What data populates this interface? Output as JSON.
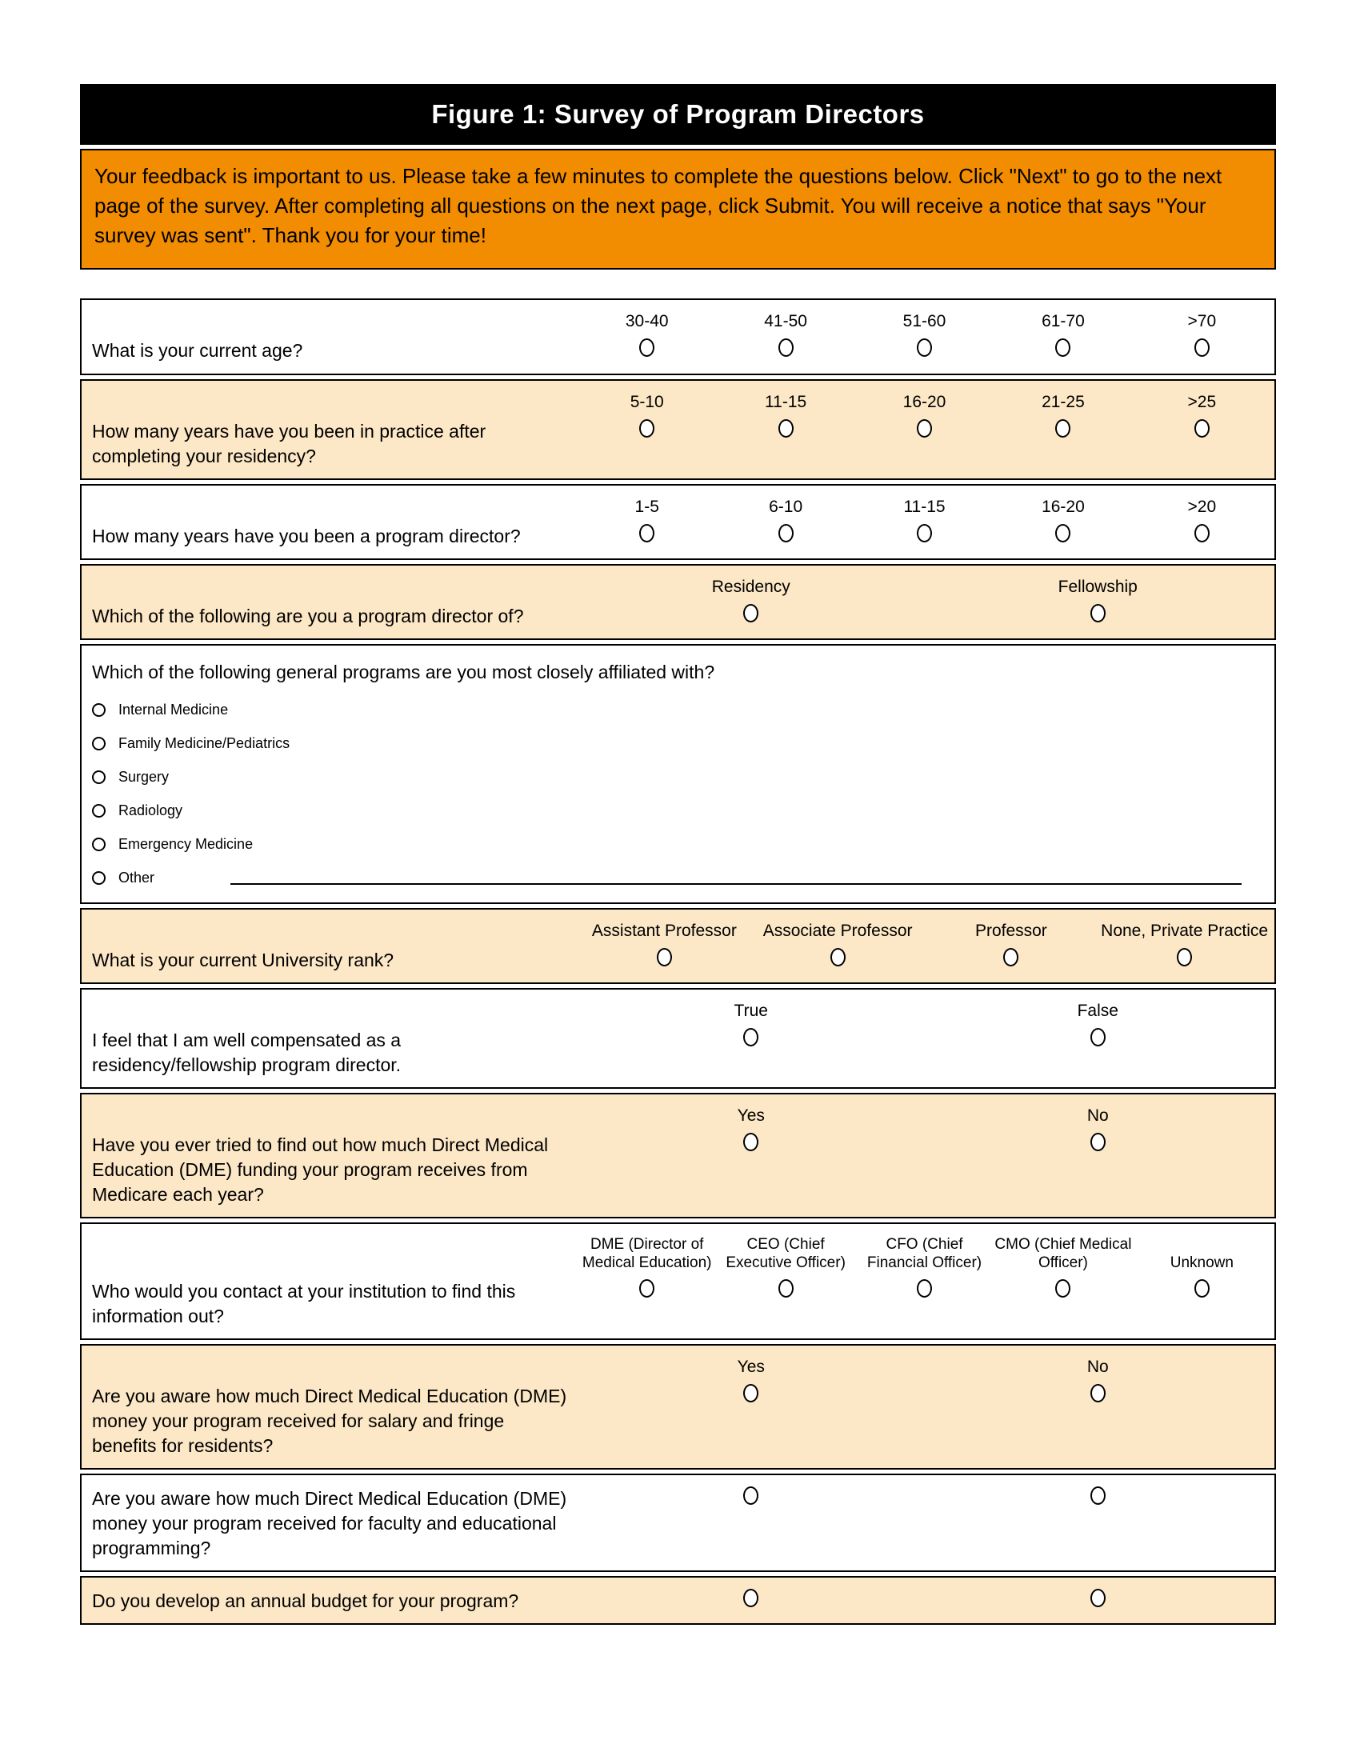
{
  "figure": {
    "title": "Figure 1: Survey of Program Directors"
  },
  "instructions": {
    "text": "Your feedback is important to us.  Please take a few minutes to complete the questions below.  Click \"Next\" to go to the next page of the survey.  After completing all questions on the next page, click Submit.  You will receive a notice that says \"Your survey was sent\".  Thank you for your time!"
  },
  "colors": {
    "title_bg": "#000000",
    "title_text": "#FFFFFF",
    "instructions_bg": "#F28C00",
    "shaded_row_bg": "#FCE7C6",
    "row_bg": "#FFFFFF",
    "border": "#000000"
  },
  "survey": {
    "questions": [
      {
        "id": "current-age",
        "text": "What is your current age?",
        "shaded": false,
        "layout": "grid",
        "label_lines": 1,
        "options": [
          "30-40",
          "41-50",
          "51-60",
          "61-70",
          ">70"
        ]
      },
      {
        "id": "years-in-practice",
        "text": "How many years have you been in practice after completing your residency?",
        "shaded": true,
        "layout": "grid",
        "label_lines": 1,
        "options": [
          "5-10",
          "11-15",
          "16-20",
          "21-25",
          ">25"
        ]
      },
      {
        "id": "years-program-director",
        "text": "How many years have you been a program director?",
        "shaded": false,
        "layout": "grid",
        "label_lines": 1,
        "options": [
          "1-5",
          "6-10",
          "11-15",
          "16-20",
          ">20"
        ]
      },
      {
        "id": "program-director-of",
        "text": "Which of the following are you a program director of?",
        "shaded": true,
        "layout": "grid",
        "label_lines": 1,
        "options": [
          "Residency",
          "Fellowship"
        ]
      },
      {
        "id": "affiliated-program",
        "text": "Which of the following general programs are you most closely affiliated with?",
        "shaded": false,
        "layout": "list",
        "label_lines": 0,
        "other_line": true,
        "options": [
          "Internal Medicine",
          "Family Medicine/Pediatrics",
          "Surgery",
          "Radiology",
          "Emergency Medicine",
          "Other"
        ]
      },
      {
        "id": "university-rank",
        "text": "What is your current University rank?",
        "shaded": true,
        "layout": "grid",
        "label_lines": 1,
        "options": [
          "Assistant Professor",
          "Associate Professor",
          "Professor",
          "None, Private Practice"
        ]
      },
      {
        "id": "well-compensated",
        "text": "I feel that I am well compensated as a residency/fellowship program director.",
        "shaded": false,
        "layout": "grid",
        "label_lines": 1,
        "options": [
          "True",
          "False"
        ]
      },
      {
        "id": "tried-dme-funding",
        "text": "Have you ever tried to find out how much Direct Medical Education (DME) funding your program receives from Medicare each year?",
        "shaded": true,
        "layout": "grid",
        "label_lines": 1,
        "options": [
          "Yes",
          "No"
        ]
      },
      {
        "id": "contact-at-institution",
        "text": "Who would you contact at your institution to find this information out?",
        "shaded": false,
        "layout": "grid",
        "label_lines": 2,
        "options": [
          "DME (Director of Medical Education)",
          "CEO (Chief Executive Officer)",
          "CFO (Chief Financial Officer)",
          "CMO (Chief Medical Officer)",
          "Unknown"
        ]
      },
      {
        "id": "aware-dme-salary-fringe",
        "text": "Are you aware how much Direct Medical Education (DME) money your program received for salary and fringe benefits for residents?",
        "shaded": true,
        "layout": "grid",
        "label_lines": 1,
        "options": [
          "Yes",
          "No"
        ]
      },
      {
        "id": "aware-dme-faculty",
        "text": "Are you aware how much Direct Medical Education (DME) money your program received for faculty and educational programming?",
        "shaded": false,
        "layout": "grid",
        "label_lines": 0,
        "options": [
          "",
          ""
        ]
      },
      {
        "id": "annual-budget",
        "text": "Do you develop an annual budget for your program?",
        "shaded": true,
        "layout": "grid",
        "label_lines": 0,
        "options": [
          "",
          ""
        ]
      }
    ]
  }
}
